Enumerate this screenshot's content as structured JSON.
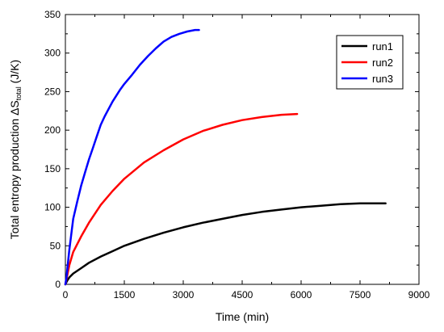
{
  "chart_data": {
    "type": "line",
    "xlabel": "Time (min)",
    "ylabel": {
      "main": "Total entropy production ΔS",
      "subscript": "total",
      "unit": " (J/K)"
    },
    "xlim": [
      0,
      9000
    ],
    "ylim": [
      0,
      350
    ],
    "xticks": [
      0,
      1500,
      3000,
      4500,
      6000,
      7500,
      9000
    ],
    "yticks": [
      0,
      50,
      100,
      150,
      200,
      250,
      300,
      350
    ],
    "grid": false,
    "legend_position": "top-right",
    "series": [
      {
        "name": "run1",
        "color": "#000000",
        "x": [
          0,
          50,
          100,
          200,
          400,
          600,
          900,
          1200,
          1500,
          2000,
          2500,
          3000,
          3500,
          4000,
          4500,
          5000,
          5500,
          6000,
          6500,
          7000,
          7500,
          8000,
          8150
        ],
        "y": [
          0,
          5,
          9,
          14,
          21,
          28,
          36,
          43,
          50,
          59,
          67,
          74,
          80,
          85,
          90,
          94,
          97,
          100,
          102,
          104,
          105,
          105,
          105
        ]
      },
      {
        "name": "run2",
        "color": "#ff0000",
        "x": [
          0,
          50,
          100,
          200,
          400,
          600,
          900,
          1200,
          1500,
          2000,
          2500,
          3000,
          3500,
          4000,
          4500,
          5000,
          5500,
          5900
        ],
        "y": [
          0,
          12,
          25,
          42,
          62,
          80,
          103,
          121,
          137,
          158,
          174,
          188,
          199,
          207,
          213,
          217,
          220,
          221
        ]
      },
      {
        "name": "run3",
        "color": "#0000ff",
        "x": [
          0,
          30,
          60,
          100,
          150,
          200,
          300,
          400,
          500,
          600,
          700,
          800,
          900,
          1000,
          1200,
          1400,
          1500,
          1700,
          1900,
          2100,
          2300,
          2500,
          2700,
          2900,
          3100,
          3300,
          3400
        ],
        "y": [
          0,
          10,
          25,
          45,
          65,
          85,
          107,
          128,
          145,
          162,
          177,
          192,
          207,
          218,
          237,
          253,
          260,
          272,
          285,
          296,
          306,
          315,
          321,
          325,
          328,
          330,
          330
        ]
      }
    ]
  }
}
